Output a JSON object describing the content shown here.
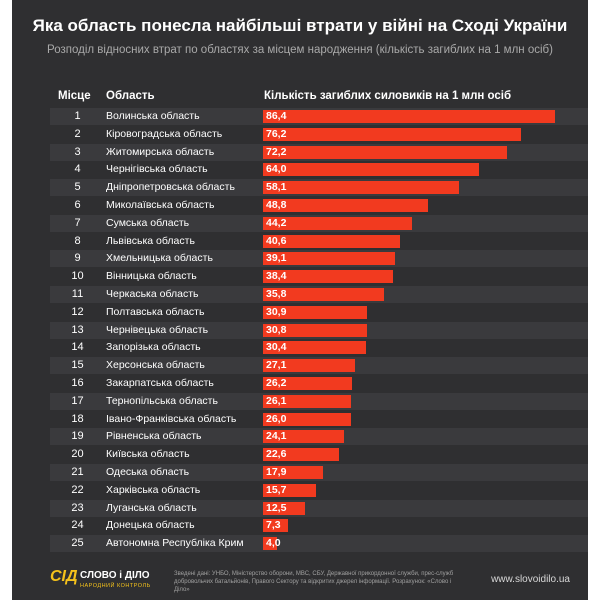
{
  "header": {
    "title": "Яка область понесла найбільші втрати у війні на Сході України",
    "subtitle": "Розподіл відносних втрат по областях за місцем народження (кількість загиблих на 1 млн осіб)"
  },
  "table": {
    "col_rank": "Місце",
    "col_region": "Область",
    "col_value": "Кількість загиблих силовиків на 1 млн осіб"
  },
  "chart_data": {
    "type": "bar",
    "orientation": "horizontal",
    "title": "Яка область понесла найбільші втрати у війні на Сході України",
    "subtitle": "Розподіл відносних втрат по областях за місцем народження (кількість загиблих на 1 млн осіб)",
    "bar_color": "#f23a1f",
    "xlim": [
      0,
      86.4
    ],
    "rows": [
      {
        "rank": "1",
        "region": "Волинська область",
        "value": 86.4,
        "label": "86,4"
      },
      {
        "rank": "2",
        "region": "Кіровоградська область",
        "value": 76.2,
        "label": "76,2"
      },
      {
        "rank": "3",
        "region": "Житомирська область",
        "value": 72.2,
        "label": "72,2"
      },
      {
        "rank": "4",
        "region": "Чернігівська область",
        "value": 64.0,
        "label": "64,0"
      },
      {
        "rank": "5",
        "region": "Дніпропетровська область",
        "value": 58.1,
        "label": "58,1"
      },
      {
        "rank": "6",
        "region": "Миколаївська область",
        "value": 48.8,
        "label": "48,8"
      },
      {
        "rank": "7",
        "region": "Сумська область",
        "value": 44.2,
        "label": "44,2"
      },
      {
        "rank": "8",
        "region": "Львівська область",
        "value": 40.6,
        "label": "40,6"
      },
      {
        "rank": "9",
        "region": "Хмельницька область",
        "value": 39.1,
        "label": "39,1"
      },
      {
        "rank": "10",
        "region": "Вінницька область",
        "value": 38.4,
        "label": "38,4"
      },
      {
        "rank": "11",
        "region": "Черкаська область",
        "value": 35.8,
        "label": "35,8"
      },
      {
        "rank": "12",
        "region": "Полтавська область",
        "value": 30.9,
        "label": "30,9"
      },
      {
        "rank": "13",
        "region": "Чернівецька область",
        "value": 30.8,
        "label": "30,8"
      },
      {
        "rank": "14",
        "region": "Запорізька область",
        "value": 30.4,
        "label": "30,4"
      },
      {
        "rank": "15",
        "region": "Херсонська область",
        "value": 27.1,
        "label": "27,1"
      },
      {
        "rank": "16",
        "region": "Закарпатська область",
        "value": 26.2,
        "label": "26,2"
      },
      {
        "rank": "17",
        "region": "Тернопільська область",
        "value": 26.1,
        "label": "26,1"
      },
      {
        "rank": "18",
        "region": "Івано-Франківська область",
        "value": 26.0,
        "label": "26,0"
      },
      {
        "rank": "19",
        "region": "Рівненська область",
        "value": 24.1,
        "label": "24,1"
      },
      {
        "rank": "20",
        "region": "Київська область",
        "value": 22.6,
        "label": "22,6"
      },
      {
        "rank": "21",
        "region": "Одеська область",
        "value": 17.9,
        "label": "17,9"
      },
      {
        "rank": "22",
        "region": "Харківська область",
        "value": 15.7,
        "label": "15,7"
      },
      {
        "rank": "23",
        "region": "Луганська область",
        "value": 12.5,
        "label": "12,5"
      },
      {
        "rank": "24",
        "region": "Донецька область",
        "value": 7.3,
        "label": "7,3"
      },
      {
        "rank": "25",
        "region": "Автономна Республіка Крим",
        "value": 4.0,
        "label": "4,0"
      }
    ]
  },
  "footer": {
    "logo_mark": "СІД",
    "logo_name": "СЛОВО і ДІЛО",
    "logo_tagline": "НАРОДНИЙ КОНТРОЛЬ",
    "source": "Зведені дані: УНБО, Міністерство оборони, МВС, СБУ, Державної прикордонної служби, прес-служб добровольчих батальйонів, Правого Сектору та відкритих джерел інформації. Розрахунок: «Слово і Діло»",
    "site": "www.slovoidilo.ua",
    "accent_color": "#f5c21b"
  }
}
